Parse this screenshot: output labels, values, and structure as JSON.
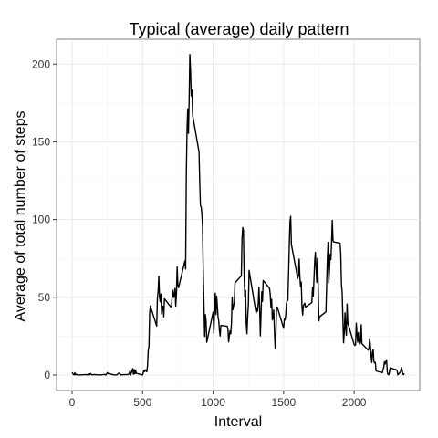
{
  "chart_data": {
    "type": "line",
    "title": "Typical (average) daily pattern",
    "xlabel": "Interval",
    "ylabel": "Average of total number of steps",
    "xlim": [
      -110,
      2465
    ],
    "ylim": [
      -10,
      216
    ],
    "xticks": [
      0,
      500,
      1000,
      1500,
      2000
    ],
    "yticks": [
      0,
      50,
      100,
      150,
      200
    ],
    "grid": true,
    "series": [
      {
        "color": "#000000",
        "points": [
          [
            0,
            1.7
          ],
          [
            10,
            0.3
          ],
          [
            15,
            0.1
          ],
          [
            20,
            1.5
          ],
          [
            25,
            0.1
          ],
          [
            30,
            0.5
          ],
          [
            40,
            0.0
          ],
          [
            55,
            0.0
          ],
          [
            100,
            0.3
          ],
          [
            110,
            0.0
          ],
          [
            120,
            0.9
          ],
          [
            125,
            0.2
          ],
          [
            130,
            1.0
          ],
          [
            140,
            0.0
          ],
          [
            150,
            0.3
          ],
          [
            200,
            0.0
          ],
          [
            230,
            0.4
          ],
          [
            240,
            0.0
          ],
          [
            250,
            1.5
          ],
          [
            255,
            1.0
          ],
          [
            300,
            0.0
          ],
          [
            310,
            0.0
          ],
          [
            320,
            0.2
          ],
          [
            330,
            1.2
          ],
          [
            340,
            0.8
          ],
          [
            345,
            0.0
          ],
          [
            355,
            0.2
          ],
          [
            400,
            0.3
          ],
          [
            405,
            1.2
          ],
          [
            410,
            2.5
          ],
          [
            415,
            0.0
          ],
          [
            420,
            1.3
          ],
          [
            425,
            2.9
          ],
          [
            430,
            4.1
          ],
          [
            435,
            0.4
          ],
          [
            440,
            3.5
          ],
          [
            445,
            0.8
          ],
          [
            450,
            3.1
          ],
          [
            455,
            1.1
          ],
          [
            500,
            0.0
          ],
          [
            505,
            1.6
          ],
          [
            510,
            3.0
          ],
          [
            515,
            2.2
          ],
          [
            520,
            3.3
          ],
          [
            525,
            3.0
          ],
          [
            530,
            2.1
          ],
          [
            535,
            6.1
          ],
          [
            540,
            16.0
          ],
          [
            545,
            18.3
          ],
          [
            550,
            39.5
          ],
          [
            555,
            44.5
          ],
          [
            600,
            31.5
          ],
          [
            605,
            49.3
          ],
          [
            610,
            53.8
          ],
          [
            615,
            63.5
          ],
          [
            620,
            50.0
          ],
          [
            625,
            47.1
          ],
          [
            630,
            52.2
          ],
          [
            635,
            39.3
          ],
          [
            640,
            44.0
          ],
          [
            645,
            44.2
          ],
          [
            650,
            37.4
          ],
          [
            655,
            49.0
          ],
          [
            700,
            43.8
          ],
          [
            705,
            44.4
          ],
          [
            710,
            50.5
          ],
          [
            715,
            54.5
          ],
          [
            720,
            49.9
          ],
          [
            725,
            50.9
          ],
          [
            730,
            55.7
          ],
          [
            735,
            44.3
          ],
          [
            740,
            52.3
          ],
          [
            745,
            69.5
          ],
          [
            750,
            57.8
          ],
          [
            755,
            56.2
          ],
          [
            800,
            73.4
          ],
          [
            805,
            68.2
          ],
          [
            810,
            129.4
          ],
          [
            815,
            157.5
          ],
          [
            820,
            171.2
          ],
          [
            825,
            155.4
          ],
          [
            830,
            177.3
          ],
          [
            835,
            206.2
          ],
          [
            840,
            195.9
          ],
          [
            845,
            179.6
          ],
          [
            850,
            183.4
          ],
          [
            855,
            167.0
          ],
          [
            900,
            143.5
          ],
          [
            905,
            124.0
          ],
          [
            910,
            109.1
          ],
          [
            915,
            108.1
          ],
          [
            920,
            103.7
          ],
          [
            925,
            95.9
          ],
          [
            930,
            66.2
          ],
          [
            935,
            45.2
          ],
          [
            940,
            24.8
          ],
          [
            945,
            38.8
          ],
          [
            950,
            34.98
          ],
          [
            955,
            21.06
          ],
          [
            1000,
            40.57
          ],
          [
            1005,
            26.98
          ],
          [
            1010,
            42.42
          ],
          [
            1015,
            52.66
          ],
          [
            1020,
            38.92
          ],
          [
            1025,
            50.79
          ],
          [
            1030,
            44.28
          ],
          [
            1035,
            37.42
          ],
          [
            1040,
            34.7
          ],
          [
            1045,
            28.34
          ],
          [
            1050,
            25.09
          ],
          [
            1055,
            31.94
          ],
          [
            1100,
            31.36
          ],
          [
            1105,
            29.68
          ],
          [
            1110,
            21.32
          ],
          [
            1115,
            25.55
          ],
          [
            1120,
            28.38
          ],
          [
            1125,
            26.47
          ],
          [
            1130,
            33.43
          ],
          [
            1135,
            49.98
          ],
          [
            1140,
            42.04
          ],
          [
            1145,
            44.6
          ],
          [
            1150,
            46.04
          ],
          [
            1155,
            59.19
          ],
          [
            1200,
            63.87
          ],
          [
            1205,
            87.7
          ],
          [
            1210,
            94.85
          ],
          [
            1215,
            92.77
          ],
          [
            1220,
            63.4
          ],
          [
            1225,
            50.17
          ],
          [
            1230,
            54.47
          ],
          [
            1235,
            32.42
          ],
          [
            1240,
            26.53
          ],
          [
            1245,
            37.74
          ],
          [
            1250,
            45.06
          ],
          [
            1255,
            67.28
          ],
          [
            1300,
            42.34
          ],
          [
            1305,
            39.88
          ],
          [
            1310,
            43.26
          ],
          [
            1315,
            40.98
          ],
          [
            1320,
            46.25
          ],
          [
            1325,
            56.43
          ],
          [
            1330,
            42.75
          ],
          [
            1335,
            25.13
          ],
          [
            1340,
            39.96
          ],
          [
            1345,
            53.55
          ],
          [
            1350,
            47.32
          ],
          [
            1355,
            60.81
          ],
          [
            1400,
            55.75
          ],
          [
            1405,
            51.96
          ],
          [
            1410,
            43.58
          ],
          [
            1415,
            48.7
          ],
          [
            1420,
            35.47
          ],
          [
            1425,
            37.55
          ],
          [
            1430,
            41.85
          ],
          [
            1435,
            27.51
          ],
          [
            1440,
            17.11
          ],
          [
            1445,
            26.08
          ],
          [
            1450,
            43.62
          ],
          [
            1455,
            43.77
          ],
          [
            1500,
            30.02
          ],
          [
            1505,
            36.07
          ],
          [
            1510,
            35.49
          ],
          [
            1515,
            38.85
          ],
          [
            1520,
            45.96
          ],
          [
            1525,
            47.75
          ],
          [
            1530,
            48.13
          ],
          [
            1535,
            65.32
          ],
          [
            1540,
            82.91
          ],
          [
            1545,
            98.66
          ],
          [
            1550,
            102.11
          ],
          [
            1555,
            83.96
          ],
          [
            1600,
            62.13
          ],
          [
            1605,
            64.13
          ],
          [
            1610,
            74.55
          ],
          [
            1615,
            63.17
          ],
          [
            1620,
            56.91
          ],
          [
            1625,
            59.77
          ],
          [
            1630,
            43.87
          ],
          [
            1635,
            38.57
          ],
          [
            1640,
            44.66
          ],
          [
            1645,
            45.45
          ],
          [
            1650,
            46.21
          ],
          [
            1655,
            43.68
          ],
          [
            1700,
            46.62
          ],
          [
            1705,
            56.3
          ],
          [
            1710,
            50.72
          ],
          [
            1715,
            61.23
          ],
          [
            1720,
            72.72
          ],
          [
            1725,
            78.94
          ],
          [
            1730,
            68.94
          ],
          [
            1735,
            59.66
          ],
          [
            1740,
            75.09
          ],
          [
            1745,
            56.51
          ],
          [
            1750,
            34.77
          ],
          [
            1755,
            37.45
          ],
          [
            1800,
            40.68
          ],
          [
            1805,
            58.02
          ],
          [
            1810,
            74.7
          ],
          [
            1815,
            85.32
          ],
          [
            1820,
            59.26
          ],
          [
            1825,
            67.77
          ],
          [
            1830,
            77.7
          ],
          [
            1835,
            74.25
          ],
          [
            1840,
            85.34
          ],
          [
            1845,
            99.45
          ],
          [
            1850,
            86.58
          ],
          [
            1855,
            85.6
          ],
          [
            1900,
            84.87
          ],
          [
            1905,
            77.83
          ],
          [
            1910,
            58.04
          ],
          [
            1915,
            53.36
          ],
          [
            1920,
            36.32
          ],
          [
            1925,
            20.72
          ],
          [
            1930,
            27.4
          ],
          [
            1935,
            40.02
          ],
          [
            1940,
            30.21
          ],
          [
            1945,
            25.55
          ],
          [
            1950,
            45.66
          ],
          [
            1955,
            33.53
          ],
          [
            2000,
            19.62
          ],
          [
            2005,
            19.02
          ],
          [
            2010,
            19.34
          ],
          [
            2015,
            33.34
          ],
          [
            2020,
            26.81
          ],
          [
            2025,
            21.17
          ],
          [
            2030,
            27.3
          ],
          [
            2035,
            21.34
          ],
          [
            2040,
            19.55
          ],
          [
            2045,
            21.32
          ],
          [
            2050,
            32.3
          ],
          [
            2055,
            20.15
          ],
          [
            2100,
            15.94
          ],
          [
            2105,
            17.23
          ],
          [
            2110,
            23.45
          ],
          [
            2115,
            19.25
          ],
          [
            2120,
            12.45
          ],
          [
            2125,
            8.02
          ],
          [
            2130,
            14.66
          ],
          [
            2135,
            16.3
          ],
          [
            2140,
            8.68
          ],
          [
            2145,
            7.79
          ],
          [
            2150,
            8.13
          ],
          [
            2155,
            2.62
          ],
          [
            2200,
            1.45
          ],
          [
            2205,
            3.68
          ],
          [
            2210,
            4.81
          ],
          [
            2215,
            8.51
          ],
          [
            2220,
            7.08
          ],
          [
            2225,
            8.7
          ],
          [
            2230,
            9.75
          ],
          [
            2235,
            2.21
          ],
          [
            2240,
            0.32
          ],
          [
            2245,
            0.11
          ],
          [
            2250,
            1.6
          ],
          [
            2255,
            4.6
          ],
          [
            2300,
            3.3
          ],
          [
            2305,
            2.85
          ],
          [
            2310,
            0.0
          ],
          [
            2315,
            0.83
          ],
          [
            2320,
            0.96
          ],
          [
            2325,
            1.58
          ],
          [
            2330,
            2.6
          ],
          [
            2335,
            4.7
          ],
          [
            2340,
            3.3
          ],
          [
            2345,
            0.64
          ],
          [
            2350,
            0.23
          ],
          [
            2355,
            1.08
          ]
        ]
      }
    ]
  }
}
